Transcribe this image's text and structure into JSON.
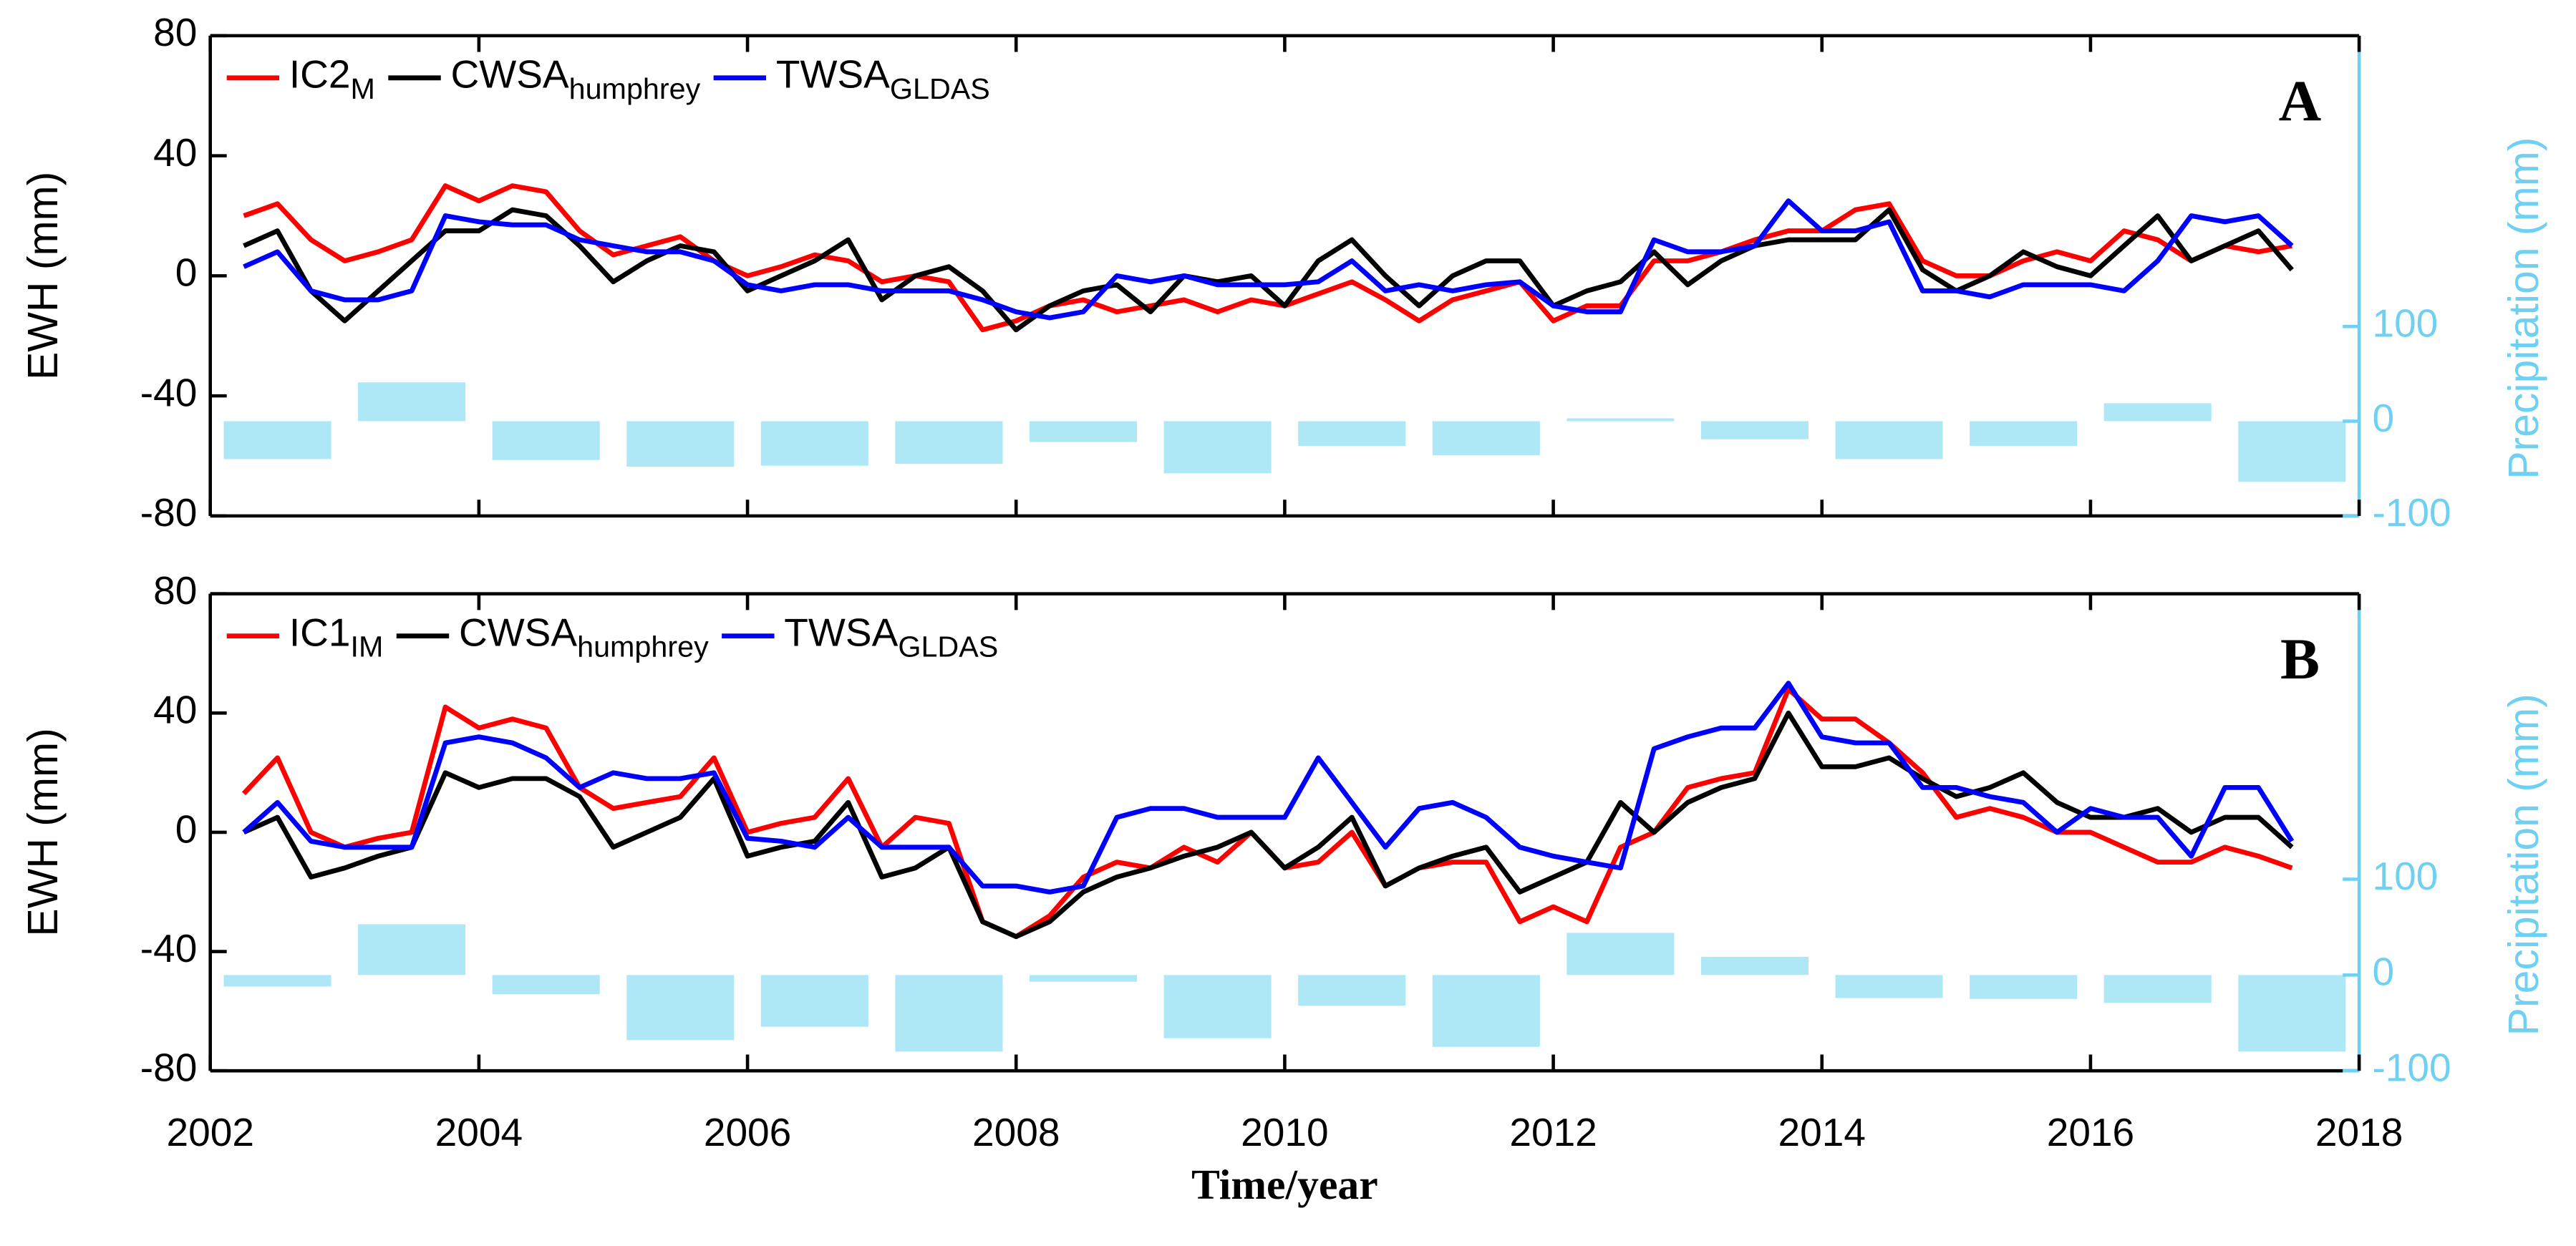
{
  "chart_data": [
    {
      "type": "line",
      "label": "A",
      "ylabel": "EWH (mm)",
      "y2label": "Precipitation (mm)",
      "xlim": [
        2002,
        2018
      ],
      "xticks": [
        2002,
        2004,
        2006,
        2008,
        2010,
        2012,
        2014,
        2016,
        2018
      ],
      "show_xtick_labels": false,
      "ylim": [
        -80,
        80
      ],
      "yticks": [
        -80,
        -40,
        0,
        40,
        80
      ],
      "y2lim": [
        -100,
        407
      ],
      "y2ticks": [
        -100,
        0,
        100
      ],
      "x": [
        2002.25,
        2002.5,
        2002.75,
        2003,
        2003.25,
        2003.5,
        2003.75,
        2004,
        2004.25,
        2004.5,
        2004.75,
        2005,
        2005.25,
        2005.5,
        2005.75,
        2006,
        2006.25,
        2006.5,
        2006.75,
        2007,
        2007.25,
        2007.5,
        2007.75,
        2008,
        2008.25,
        2008.5,
        2008.75,
        2009,
        2009.25,
        2009.5,
        2009.75,
        2010,
        2010.25,
        2010.5,
        2010.75,
        2011,
        2011.25,
        2011.5,
        2011.75,
        2012,
        2012.25,
        2012.5,
        2012.75,
        2013,
        2013.25,
        2013.5,
        2013.75,
        2014,
        2014.25,
        2014.5,
        2014.75,
        2015,
        2015.25,
        2015.5,
        2015.75,
        2016,
        2016.25,
        2016.5,
        2016.75,
        2017,
        2017.25,
        2017.5
      ],
      "series": [
        {
          "name": "IC2",
          "name_sub": "M",
          "color": "#ff0000",
          "values": [
            20,
            24,
            12,
            5,
            8,
            12,
            30,
            25,
            30,
            28,
            15,
            7,
            10,
            13,
            5,
            0,
            3,
            7,
            5,
            -2,
            0,
            -2,
            -18,
            -15,
            -10,
            -8,
            -12,
            -10,
            -8,
            -12,
            -8,
            -10,
            -6,
            -2,
            -8,
            -15,
            -8,
            -5,
            -2,
            -15,
            -10,
            -10,
            5,
            5,
            8,
            12,
            15,
            15,
            22,
            24,
            5,
            0,
            0,
            5,
            8,
            5,
            15,
            12,
            5,
            10,
            8,
            10
          ]
        },
        {
          "name": "CWSA",
          "name_sub": "humphrey",
          "color": "#000000",
          "values": [
            10,
            15,
            -5,
            -15,
            -5,
            5,
            15,
            15,
            22,
            20,
            10,
            -2,
            5,
            10,
            8,
            -5,
            0,
            5,
            12,
            -8,
            0,
            3,
            -5,
            -18,
            -10,
            -5,
            -3,
            -12,
            0,
            -2,
            0,
            -10,
            5,
            12,
            0,
            -10,
            0,
            5,
            5,
            -10,
            -5,
            -2,
            8,
            -3,
            5,
            10,
            12,
            12,
            12,
            22,
            2,
            -5,
            0,
            8,
            3,
            0,
            10,
            20,
            5,
            10,
            15,
            2
          ]
        },
        {
          "name": "TWSA",
          "name_sub": "GLDAS",
          "color": "#0000ff",
          "values": [
            3,
            8,
            -5,
            -8,
            -8,
            -5,
            20,
            18,
            17,
            17,
            12,
            10,
            8,
            8,
            5,
            -3,
            -5,
            -3,
            -3,
            -5,
            -5,
            -5,
            -8,
            -12,
            -14,
            -12,
            0,
            -2,
            0,
            -3,
            -3,
            -3,
            -2,
            5,
            -5,
            -3,
            -5,
            -3,
            -2,
            -10,
            -12,
            -12,
            12,
            8,
            8,
            10,
            25,
            15,
            15,
            18,
            -5,
            -5,
            -7,
            -3,
            -3,
            -3,
            -5,
            5,
            20,
            18,
            20,
            10
          ]
        },
        {
          "type": "bar",
          "axis": "y2",
          "color": "#aee8f7",
          "x": [
            2002.5,
            2003.5,
            2004.5,
            2005.5,
            2006.5,
            2007.5,
            2008.5,
            2009.5,
            2010.5,
            2011.5,
            2012.5,
            2013.5,
            2014.5,
            2015.5,
            2016.5,
            2017.5
          ],
          "values": [
            -40,
            41,
            -41,
            -48,
            -47,
            -45,
            -22,
            -55,
            -26,
            -36,
            3,
            -19,
            -40,
            -26,
            19,
            -64
          ]
        }
      ]
    },
    {
      "type": "line",
      "label": "B",
      "ylabel": "EWH (mm)",
      "y2label": "Precipitation (mm)",
      "xlabel": "Time/year",
      "xlim": [
        2002,
        2018
      ],
      "xticks": [
        2002,
        2004,
        2006,
        2008,
        2010,
        2012,
        2014,
        2016,
        2018
      ],
      "show_xtick_labels": true,
      "ylim": [
        -80,
        80
      ],
      "yticks": [
        -80,
        -40,
        0,
        40,
        80
      ],
      "y2lim": [
        -100,
        398
      ],
      "y2ticks": [
        -100,
        0,
        100
      ],
      "x": [
        2002.25,
        2002.5,
        2002.75,
        2003,
        2003.25,
        2003.5,
        2003.75,
        2004,
        2004.25,
        2004.5,
        2004.75,
        2005,
        2005.25,
        2005.5,
        2005.75,
        2006,
        2006.25,
        2006.5,
        2006.75,
        2007,
        2007.25,
        2007.5,
        2007.75,
        2008,
        2008.25,
        2008.5,
        2008.75,
        2009,
        2009.25,
        2009.5,
        2009.75,
        2010,
        2010.25,
        2010.5,
        2010.75,
        2011,
        2011.25,
        2011.5,
        2011.75,
        2012,
        2012.25,
        2012.5,
        2012.75,
        2013,
        2013.25,
        2013.5,
        2013.75,
        2014,
        2014.25,
        2014.5,
        2014.75,
        2015,
        2015.25,
        2015.5,
        2015.75,
        2016,
        2016.25,
        2016.5,
        2016.75,
        2017,
        2017.25,
        2017.5
      ],
      "series": [
        {
          "name": "IC1",
          "name_sub": "IM",
          "color": "#ff0000",
          "values": [
            13,
            25,
            0,
            -5,
            -2,
            0,
            42,
            35,
            38,
            35,
            15,
            8,
            10,
            12,
            25,
            0,
            3,
            5,
            18,
            -5,
            5,
            3,
            -30,
            -35,
            -28,
            -15,
            -10,
            -12,
            -5,
            -10,
            0,
            -12,
            -10,
            0,
            -18,
            -12,
            -10,
            -10,
            -30,
            -25,
            -30,
            -5,
            0,
            15,
            18,
            20,
            48,
            38,
            38,
            30,
            20,
            5,
            8,
            5,
            0,
            0,
            -5,
            -10,
            -10,
            -5,
            -8,
            -12
          ]
        },
        {
          "name": "CWSA",
          "name_sub": "humphrey",
          "color": "#000000",
          "values": [
            0,
            5,
            -15,
            -12,
            -8,
            -5,
            20,
            15,
            18,
            18,
            12,
            -5,
            0,
            5,
            18,
            -8,
            -5,
            -3,
            10,
            -15,
            -12,
            -5,
            -30,
            -35,
            -30,
            -20,
            -15,
            -12,
            -8,
            -5,
            0,
            -12,
            -5,
            5,
            -18,
            -12,
            -8,
            -5,
            -20,
            -15,
            -10,
            10,
            0,
            10,
            15,
            18,
            40,
            22,
            22,
            25,
            18,
            12,
            15,
            20,
            10,
            5,
            5,
            8,
            0,
            5,
            5,
            -5
          ]
        },
        {
          "name": "TWSA",
          "name_sub": "GLDAS",
          "color": "#0000ff",
          "values": [
            0,
            10,
            -3,
            -5,
            -5,
            -5,
            30,
            32,
            30,
            25,
            15,
            20,
            18,
            18,
            20,
            -2,
            -3,
            -5,
            5,
            -5,
            -5,
            -5,
            -18,
            -18,
            -20,
            -18,
            5,
            8,
            8,
            5,
            5,
            5,
            25,
            10,
            -5,
            8,
            10,
            5,
            -5,
            -8,
            -10,
            -12,
            28,
            32,
            35,
            35,
            50,
            32,
            30,
            30,
            15,
            15,
            12,
            10,
            0,
            8,
            5,
            5,
            -8,
            15,
            15,
            -3
          ]
        },
        {
          "type": "bar",
          "axis": "y2",
          "color": "#aee8f7",
          "x": [
            2002.5,
            2003.5,
            2004.5,
            2005.5,
            2006.5,
            2007.5,
            2008.5,
            2009.5,
            2010.5,
            2011.5,
            2012.5,
            2013.5,
            2014.5,
            2015.5,
            2016.5,
            2017.5
          ],
          "values": [
            -12,
            53,
            -20,
            -68,
            -54,
            -80,
            -7,
            -66,
            -32,
            -75,
            44,
            19,
            -24,
            -25,
            -29,
            -80
          ]
        }
      ]
    }
  ]
}
